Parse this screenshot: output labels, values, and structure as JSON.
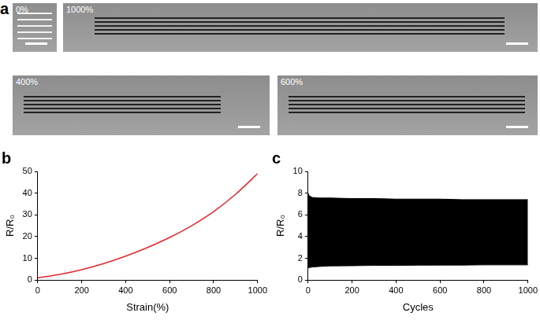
{
  "photo_panel": {
    "title": "a",
    "photos": [
      {
        "label": "0%"
      },
      {
        "label": "1000%"
      },
      {
        "label": "400%"
      },
      {
        "label": "600%"
      }
    ]
  },
  "chart_data": [
    {
      "type": "line",
      "title": "b",
      "x_label": "Strain(%)",
      "y_label": "R/R₀",
      "x": [
        0,
        100,
        200,
        300,
        400,
        500,
        600,
        700,
        800,
        900,
        1000
      ],
      "values": [
        1,
        2.6,
        4.8,
        7.6,
        11,
        15,
        19.6,
        25,
        31.5,
        39.5,
        49
      ],
      "color": "#e8262b",
      "xlim": [
        0,
        1000
      ],
      "xticks": [
        0,
        200,
        400,
        600,
        800,
        1000
      ],
      "ylim": [
        0,
        50
      ],
      "yticks": [
        0,
        10,
        20,
        30,
        40,
        50
      ],
      "grid": false
    },
    {
      "type": "area",
      "title": "c",
      "x_label": "Cycles",
      "y_label": "R/R₀",
      "x": [
        0,
        5,
        20,
        50,
        100,
        200,
        300,
        400,
        500,
        600,
        700,
        800,
        900,
        1000
      ],
      "series": [
        {
          "color": "#000000",
          "values": [
            8.0,
            7.75,
            7.6,
            7.55,
            7.55,
            7.5,
            7.5,
            7.45,
            7.45,
            7.45,
            7.4,
            7.4,
            7.4,
            7.4
          ]
        },
        {
          "color": "#000000",
          "values": [
            1.1,
            1.15,
            1.2,
            1.25,
            1.3,
            1.32,
            1.35,
            1.35,
            1.37,
            1.38,
            1.38,
            1.4,
            1.4,
            1.4
          ]
        }
      ],
      "xlim": [
        0,
        1000
      ],
      "xticks": [
        0,
        200,
        400,
        600,
        800,
        1000
      ],
      "ylim": [
        0,
        10
      ],
      "yticks": [
        0,
        2,
        4,
        6,
        8,
        10
      ],
      "grid": false
    }
  ]
}
